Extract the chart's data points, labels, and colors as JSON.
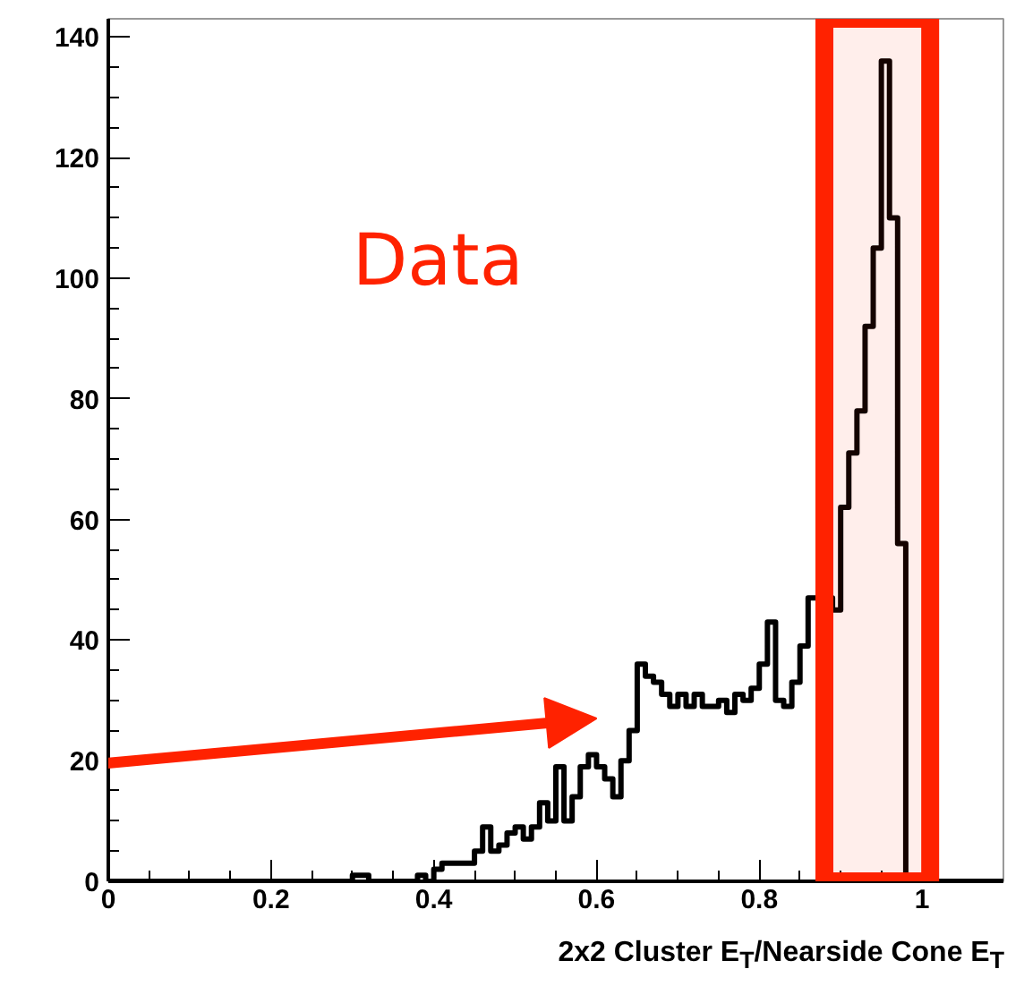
{
  "chart_data": {
    "type": "histogram",
    "xlabel": "2x2 Cluster E$_{T}$/Nearside Cone E$_{T}$",
    "bins": [
      0,
      0.01,
      0.02,
      0.03,
      0.04,
      0.05,
      0.06,
      0.07,
      0.08,
      0.09,
      0.1,
      0.11,
      0.12,
      0.13,
      0.14,
      0.15,
      0.16,
      0.17,
      0.18,
      0.19,
      0.2,
      0.21,
      0.22,
      0.23,
      0.24,
      0.25,
      0.26,
      0.27,
      0.28,
      0.29,
      0.3,
      0.31,
      0.32,
      0.33,
      0.34,
      0.35,
      0.36,
      0.37,
      0.38,
      0.39,
      0.4,
      0.41,
      0.42,
      0.43,
      0.44,
      0.45,
      0.46,
      0.47,
      0.48,
      0.49,
      0.5,
      0.51,
      0.52,
      0.53,
      0.54,
      0.55,
      0.56,
      0.57,
      0.58,
      0.59,
      0.6,
      0.61,
      0.62,
      0.63,
      0.64,
      0.65,
      0.66,
      0.67,
      0.68,
      0.69,
      0.7,
      0.71,
      0.72,
      0.73,
      0.74,
      0.75,
      0.76,
      0.77,
      0.78,
      0.79,
      0.8,
      0.81,
      0.82,
      0.83,
      0.84,
      0.85,
      0.86,
      0.87,
      0.88,
      0.89,
      0.9,
      0.91,
      0.92,
      0.93,
      0.94,
      0.95,
      0.96,
      0.97,
      0.98,
      0.99,
      1.0,
      1.01,
      1.02,
      1.03,
      1.04,
      1.05,
      1.06,
      1.07,
      1.08,
      1.09,
      1.1
    ],
    "values": [
      0,
      0,
      0,
      0,
      0,
      0,
      0,
      0,
      0,
      0,
      0,
      0,
      0,
      0,
      0,
      0,
      0,
      0,
      0,
      0,
      0,
      0,
      0,
      0,
      0,
      0,
      0,
      0,
      0,
      0,
      1,
      1,
      0,
      0,
      0,
      0,
      0,
      0,
      1,
      0,
      2,
      3,
      3,
      3,
      3,
      5,
      9,
      5,
      6,
      8,
      9,
      7,
      9,
      13,
      10,
      19,
      10,
      14,
      19,
      21,
      19,
      17,
      14,
      20,
      25,
      36,
      34,
      33,
      31,
      29,
      31,
      29,
      31,
      29,
      29,
      30,
      28,
      31,
      30,
      32,
      36,
      43,
      30,
      29,
      33,
      39,
      47,
      47,
      47,
      45,
      62,
      71,
      78,
      92,
      105,
      136,
      110,
      56,
      1,
      0,
      0,
      0,
      0,
      0,
      0,
      0,
      0,
      0,
      0,
      0
    ],
    "color": "#000000",
    "xlim": [
      0,
      1.1
    ],
    "ylim": [
      0,
      143
    ],
    "xticks": [
      0,
      0.2,
      0.4,
      0.6,
      0.8,
      1
    ],
    "yticks": [
      0,
      20,
      40,
      60,
      80,
      100,
      120,
      140
    ],
    "grid": false,
    "annotations": [
      "Data"
    ],
    "bands": [
      {
        "axis": "x",
        "from": 0.88,
        "to": 1.01,
        "color": "#ff2200"
      }
    ]
  }
}
